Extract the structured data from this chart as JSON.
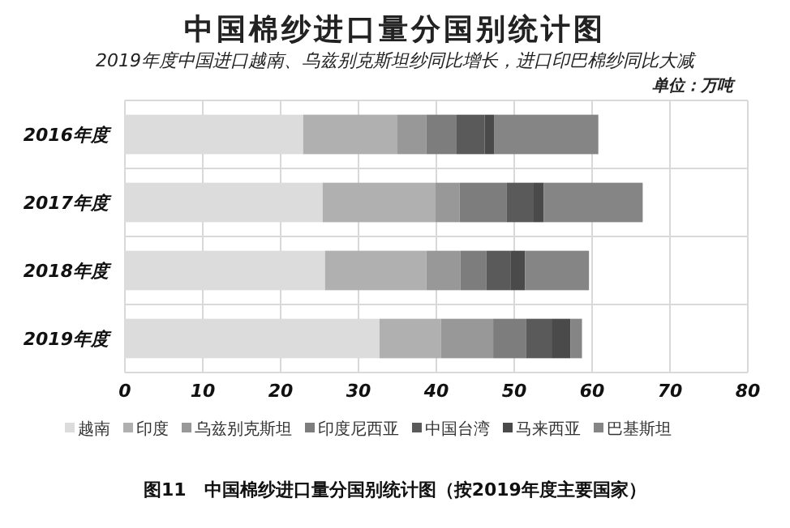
{
  "chart_data": {
    "type": "bar",
    "orientation": "horizontal",
    "stacked": true,
    "title": "中国棉纱进口量分国别统计图",
    "subtitle": "2019年度中国进口越南、乌兹别克斯坦纱同比增长，进口印巴棉纱同比大减",
    "annotations": [
      "单位：万吨",
      "图11　中国棉纱进口量分国别统计图（按2019年度主要国家）"
    ],
    "categories": [
      "2016年度",
      "2017年度",
      "2018年度",
      "2019年度"
    ],
    "series": [
      {
        "name": "越南",
        "color": "#dcdcdc",
        "values": [
          22.9,
          25.4,
          25.7,
          32.7
        ]
      },
      {
        "name": "印度",
        "color": "#b0b0b0",
        "values": [
          12.1,
          14.5,
          13.0,
          7.9
        ]
      },
      {
        "name": "乌兹别克斯坦",
        "color": "#989898",
        "values": [
          3.7,
          3.1,
          4.4,
          6.7
        ]
      },
      {
        "name": "印度尼西亚",
        "color": "#7d7d7d",
        "values": [
          3.9,
          6.0,
          3.3,
          4.2
        ]
      },
      {
        "name": "中国台湾",
        "color": "#5a5a5a",
        "values": [
          3.6,
          3.5,
          3.1,
          3.3
        ]
      },
      {
        "name": "马来西亚",
        "color": "#4a4a4a",
        "values": [
          1.2,
          1.3,
          1.9,
          2.4
        ]
      },
      {
        "name": "巴基斯坦",
        "color": "#858585",
        "values": [
          13.4,
          12.7,
          8.2,
          1.5
        ]
      }
    ],
    "xlim": [
      0,
      80
    ],
    "xticks": [
      0,
      10,
      20,
      30,
      40,
      50,
      60,
      70,
      80
    ],
    "grid": true,
    "legend": "bottom"
  }
}
